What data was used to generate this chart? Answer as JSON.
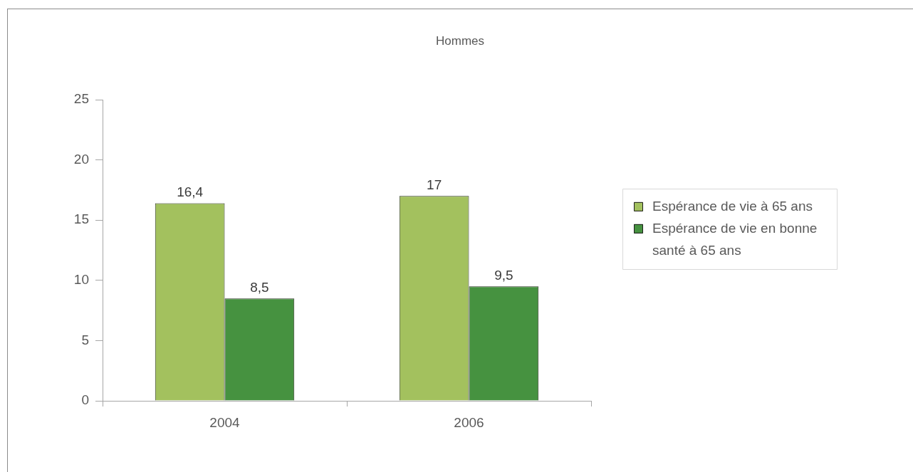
{
  "chart_data": {
    "type": "bar",
    "title": "Hommes",
    "categories": [
      "2004",
      "2006"
    ],
    "series": [
      {
        "name": "Espérance de vie à 65 ans",
        "color": "#a3c15e",
        "values": [
          16.4,
          17
        ],
        "value_labels": [
          "16,4",
          "17"
        ]
      },
      {
        "name": "Espérance de vie en bonne santé à 65 ans",
        "color": "#469240",
        "values": [
          8.5,
          9.5
        ],
        "value_labels": [
          "8,5",
          "9,5"
        ]
      }
    ],
    "ylim": [
      0,
      25
    ],
    "yticks": [
      0,
      5,
      10,
      15,
      20,
      25
    ],
    "grid": false,
    "legend": "right"
  }
}
